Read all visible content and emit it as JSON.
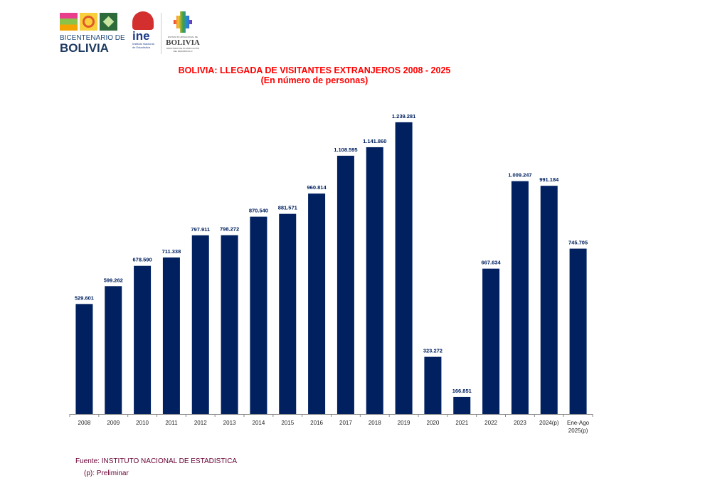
{
  "logos": {
    "bicentenario_line1": "BICENTENARIO DE",
    "bicentenario_line2": "BOLIVIA",
    "ine": "ine",
    "ine_sub1": "Instituto Nacional",
    "ine_sub2": "de Estadística",
    "estado_line1": "ESTADO PLURINACIONAL DE",
    "estado_line2": "BOLIVIA",
    "estado_line3": "MINISTERIO DE PLANIFICACIÓN DEL DESARROLLO"
  },
  "chart_data": {
    "type": "bar",
    "title": "BOLIVIA: LLEGADA DE VISITANTES EXTRANJEROS 2008 - 2025",
    "subtitle": "(En número de personas)",
    "categories": [
      "2008",
      "2009",
      "2010",
      "2011",
      "2012",
      "2013",
      "2014",
      "2015",
      "2016",
      "2017",
      "2018",
      "2019",
      "2020",
      "2021",
      "2022",
      "2023",
      "2024(p)",
      "Ene-Ago|2025(p)"
    ],
    "values": [
      529601,
      599262,
      678590,
      711338,
      797911,
      798272,
      870540,
      881571,
      960814,
      1108595,
      1141860,
      1239281,
      323272,
      166851,
      667634,
      1009247,
      991184,
      745705
    ],
    "labels": [
      "529.601",
      "599.262",
      "678.590",
      "711.338",
      "797.911",
      "798.272",
      "870.540",
      "881.571",
      "960.814",
      "1.108.595",
      "1.141.860",
      "1.239.281",
      "323.272",
      "166.851",
      "667.634",
      "1.009.247",
      "991.184",
      "745.705"
    ],
    "ylim": [
      100000,
      1300000
    ],
    "bar_color": "#002060",
    "label_color": "#002060",
    "grid": false,
    "xlabel": "",
    "ylabel": ""
  },
  "footer": {
    "source": "Fuente: INSTITUTO NACIONAL DE ESTADISTICA",
    "note": "(p): Preliminar"
  }
}
